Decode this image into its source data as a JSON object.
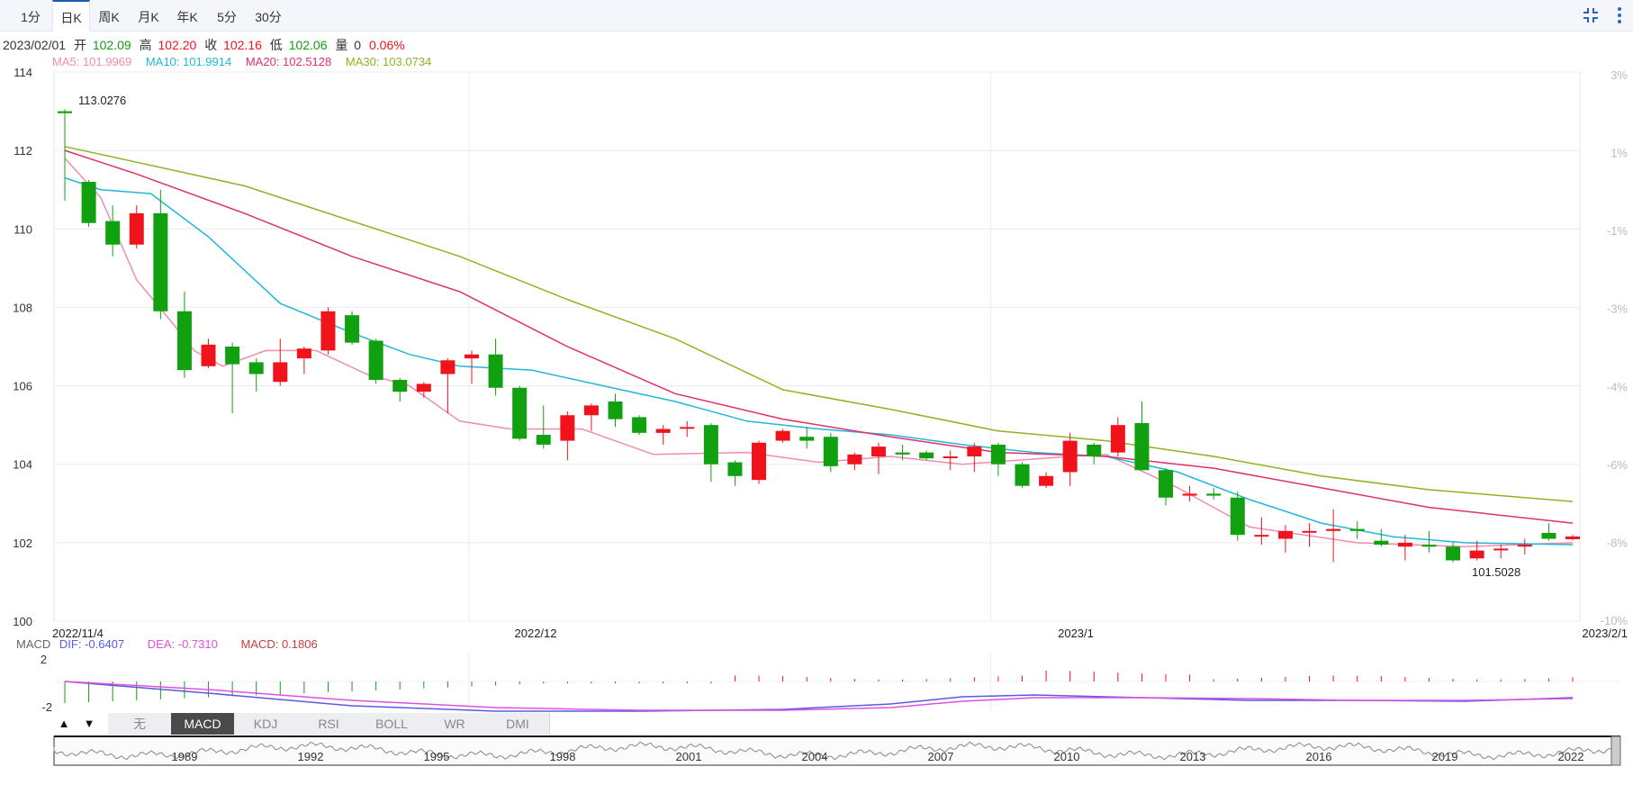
{
  "tabs": [
    {
      "label": "1分"
    },
    {
      "label": "日K"
    },
    {
      "label": "周K"
    },
    {
      "label": "月K"
    },
    {
      "label": "年K"
    },
    {
      "label": "5分"
    },
    {
      "label": "30分"
    }
  ],
  "active_tab": 1,
  "info": {
    "date": "2023/02/01",
    "open_label": "开",
    "open": "102.09",
    "high_label": "高",
    "high": "102.20",
    "close_label": "收",
    "close": "102.16",
    "low_label": "低",
    "low": "102.06",
    "vol_label": "量",
    "vol": "0",
    "change": "0.06%"
  },
  "ma": [
    {
      "label": "MA5: 101.9969",
      "color": "#f08cb0"
    },
    {
      "label": "MA10: 101.9914",
      "color": "#22b7d6"
    },
    {
      "label": "MA20: 102.5128",
      "color": "#e0306a"
    },
    {
      "label": "MA30: 103.0734",
      "color": "#8fb31f"
    }
  ],
  "macd": {
    "title": "MACD",
    "dif": "DIF: -0.6407",
    "dea": "DEA: -0.7310",
    "macd": "MACD: 0.1806",
    "yticks": [
      "2",
      "-2"
    ]
  },
  "indicator_tabs": [
    "无",
    "MACD",
    "KDJ",
    "RSI",
    "BOLL",
    "WR",
    "DMI"
  ],
  "active_indicator": 1,
  "navigator_years": [
    "1989",
    "1992",
    "1995",
    "1998",
    "2001",
    "2004",
    "2007",
    "2010",
    "2013",
    "2016",
    "2019",
    "2022"
  ],
  "colors": {
    "up": "#f0131b",
    "down": "#10a010",
    "accent": "#1e5bb8"
  },
  "chart_data": {
    "type": "candlestick",
    "ylim": [
      100,
      114
    ],
    "yticks": [
      100,
      102,
      104,
      106,
      108,
      110,
      112,
      114
    ],
    "pct_ticks": [
      "3%",
      "1%",
      "-1%",
      "-3%",
      "-4%",
      "-6%",
      "-8%",
      "-10%"
    ],
    "x_labels": [
      "2022/11/4",
      "2022/12",
      "2023/1",
      "2023/2/1"
    ],
    "max_label": "113.0276",
    "min_label": "101.5028",
    "candles": [
      [
        113.0,
        112.95,
        113.05,
        110.72
      ],
      [
        111.2,
        110.15,
        111.25,
        110.05
      ],
      [
        110.2,
        109.6,
        110.6,
        109.3
      ],
      [
        109.6,
        110.4,
        110.6,
        109.5
      ],
      [
        110.4,
        107.9,
        111.0,
        107.7
      ],
      [
        107.9,
        106.4,
        108.4,
        106.2
      ],
      [
        106.5,
        107.05,
        107.2,
        106.45
      ],
      [
        107.0,
        106.55,
        107.1,
        105.3
      ],
      [
        106.6,
        106.3,
        106.7,
        105.85
      ],
      [
        106.1,
        106.6,
        107.2,
        106.0
      ],
      [
        106.7,
        106.95,
        107.0,
        106.3
      ],
      [
        106.9,
        107.9,
        108.0,
        106.8
      ],
      [
        107.8,
        107.1,
        107.9,
        107.05
      ],
      [
        107.15,
        106.15,
        107.2,
        106.05
      ],
      [
        106.15,
        105.85,
        106.2,
        105.6
      ],
      [
        105.85,
        106.05,
        106.1,
        105.7
      ],
      [
        106.3,
        106.65,
        106.7,
        105.3
      ],
      [
        106.7,
        106.8,
        106.9,
        106.05
      ],
      [
        106.8,
        105.95,
        107.2,
        105.75
      ],
      [
        105.95,
        104.65,
        106.0,
        104.6
      ],
      [
        104.75,
        104.5,
        105.5,
        104.4
      ],
      [
        104.6,
        105.25,
        105.35,
        104.1
      ],
      [
        105.25,
        105.5,
        105.55,
        104.85
      ],
      [
        105.6,
        105.15,
        105.8,
        104.95
      ],
      [
        105.2,
        104.8,
        105.25,
        104.75
      ],
      [
        104.8,
        104.9,
        105.0,
        104.5
      ],
      [
        104.95,
        104.95,
        105.1,
        104.7
      ],
      [
        105.0,
        104.0,
        105.05,
        103.55
      ],
      [
        104.05,
        103.7,
        104.1,
        103.45
      ],
      [
        103.6,
        104.55,
        104.6,
        103.5
      ],
      [
        104.6,
        104.85,
        104.9,
        104.55
      ],
      [
        104.7,
        104.6,
        104.95,
        104.4
      ],
      [
        104.7,
        103.95,
        104.8,
        103.8
      ],
      [
        104.0,
        104.25,
        104.3,
        103.85
      ],
      [
        104.2,
        104.45,
        104.55,
        103.75
      ],
      [
        104.3,
        104.25,
        104.5,
        104.1
      ],
      [
        104.3,
        104.15,
        104.35,
        104.1
      ],
      [
        104.2,
        104.2,
        104.35,
        103.85
      ],
      [
        104.2,
        104.45,
        104.55,
        103.8
      ],
      [
        104.5,
        104.0,
        104.55,
        103.7
      ],
      [
        104.0,
        103.45,
        104.05,
        103.4
      ],
      [
        103.45,
        103.7,
        103.8,
        103.4
      ],
      [
        103.8,
        104.6,
        104.8,
        103.45
      ],
      [
        104.5,
        104.2,
        104.55,
        104.0
      ],
      [
        104.3,
        105.0,
        105.2,
        104.2
      ],
      [
        105.05,
        103.85,
        105.6,
        103.85
      ],
      [
        103.85,
        103.15,
        103.9,
        102.95
      ],
      [
        103.2,
        103.25,
        103.45,
        103.05
      ],
      [
        103.25,
        103.2,
        103.4,
        103.1
      ],
      [
        103.15,
        102.2,
        103.3,
        102.05
      ],
      [
        102.2,
        102.2,
        102.65,
        101.95
      ],
      [
        102.1,
        102.3,
        102.45,
        101.75
      ],
      [
        102.3,
        102.3,
        102.5,
        101.9
      ],
      [
        102.3,
        102.35,
        102.85,
        101.5
      ],
      [
        102.35,
        102.3,
        102.55,
        102.1
      ],
      [
        102.05,
        101.95,
        102.35,
        101.9
      ],
      [
        101.9,
        102.0,
        102.2,
        101.55
      ],
      [
        101.95,
        101.9,
        102.3,
        101.75
      ],
      [
        101.9,
        101.55,
        102.0,
        101.5
      ],
      [
        101.6,
        101.8,
        102.05,
        101.55
      ],
      [
        101.85,
        101.85,
        101.95,
        101.6
      ],
      [
        101.9,
        101.95,
        102.1,
        101.7
      ],
      [
        102.25,
        102.1,
        102.5,
        102.05
      ],
      [
        102.09,
        102.16,
        102.2,
        102.06
      ]
    ],
    "ma_series": [
      {
        "name": "MA5",
        "points": [
          [
            0,
            111.8
          ],
          [
            5,
            110.8
          ],
          [
            10,
            108.7
          ],
          [
            15,
            107.6
          ],
          [
            18,
            106.9
          ],
          [
            22,
            106.5
          ],
          [
            28,
            106.9
          ],
          [
            35,
            106.9
          ],
          [
            42,
            106.3
          ],
          [
            48,
            106.0
          ],
          [
            55,
            105.1
          ],
          [
            62,
            104.9
          ],
          [
            72,
            104.9
          ],
          [
            82,
            104.25
          ],
          [
            95,
            104.3
          ],
          [
            105,
            104.05
          ],
          [
            115,
            104.2
          ],
          [
            125,
            104.0
          ],
          [
            140,
            104.2
          ],
          [
            145,
            104.25
          ],
          [
            155,
            103.4
          ],
          [
            165,
            102.4
          ],
          [
            180,
            102.0
          ],
          [
            195,
            101.9
          ],
          [
            210,
            102.0
          ]
        ]
      },
      {
        "name": "MA10",
        "points": [
          [
            0,
            111.3
          ],
          [
            5,
            111.0
          ],
          [
            12,
            110.9
          ],
          [
            20,
            109.8
          ],
          [
            30,
            108.1
          ],
          [
            40,
            107.35
          ],
          [
            48,
            106.8
          ],
          [
            55,
            106.5
          ],
          [
            65,
            106.4
          ],
          [
            75,
            106.0
          ],
          [
            85,
            105.6
          ],
          [
            95,
            105.1
          ],
          [
            105,
            104.9
          ],
          [
            115,
            104.75
          ],
          [
            125,
            104.5
          ],
          [
            135,
            104.3
          ],
          [
            145,
            104.2
          ],
          [
            155,
            103.8
          ],
          [
            165,
            103.1
          ],
          [
            175,
            102.5
          ],
          [
            185,
            102.15
          ],
          [
            195,
            102.0
          ],
          [
            210,
            101.95
          ]
        ]
      },
      {
        "name": "MA20",
        "points": [
          [
            0,
            112.0
          ],
          [
            10,
            111.4
          ],
          [
            25,
            110.4
          ],
          [
            40,
            109.3
          ],
          [
            55,
            108.4
          ],
          [
            70,
            107.0
          ],
          [
            85,
            105.8
          ],
          [
            100,
            105.15
          ],
          [
            115,
            104.7
          ],
          [
            130,
            104.3
          ],
          [
            145,
            104.2
          ],
          [
            160,
            103.9
          ],
          [
            175,
            103.4
          ],
          [
            190,
            102.9
          ],
          [
            210,
            102.5
          ]
        ]
      },
      {
        "name": "MA30",
        "points": [
          [
            0,
            112.1
          ],
          [
            10,
            111.7
          ],
          [
            25,
            111.1
          ],
          [
            40,
            110.2
          ],
          [
            55,
            109.3
          ],
          [
            70,
            108.2
          ],
          [
            85,
            107.2
          ],
          [
            100,
            105.9
          ],
          [
            115,
            105.4
          ],
          [
            130,
            104.85
          ],
          [
            145,
            104.6
          ],
          [
            160,
            104.2
          ],
          [
            175,
            103.7
          ],
          [
            190,
            103.35
          ],
          [
            210,
            103.05
          ]
        ]
      }
    ]
  }
}
